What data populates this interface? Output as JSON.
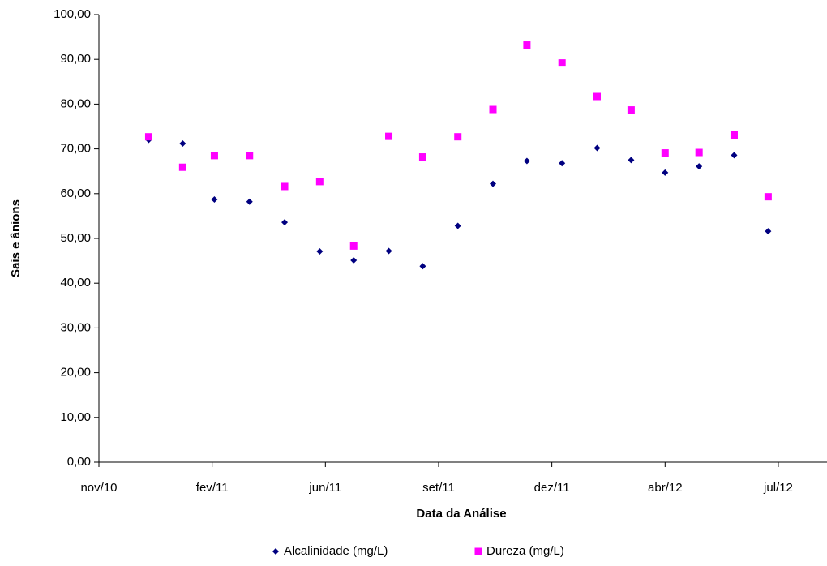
{
  "chart_data": {
    "type": "scatter",
    "x_label": "Data da Análise",
    "y_label": "Sais e ânions",
    "xlim": [
      40500,
      41143
    ],
    "xticks": [
      {
        "value": 40500,
        "label": "nov/10"
      },
      {
        "value": 40600,
        "label": "fev/11"
      },
      {
        "value": 40700,
        "label": "jun/11"
      },
      {
        "value": 40800,
        "label": "set/11"
      },
      {
        "value": 40900,
        "label": "dez/11"
      },
      {
        "value": 41000,
        "label": "abr/12"
      },
      {
        "value": 41100,
        "label": "jul/12"
      }
    ],
    "ylim": [
      0,
      100
    ],
    "yticks": [
      {
        "value": 0,
        "label": "0,00"
      },
      {
        "value": 10,
        "label": "10,00"
      },
      {
        "value": 20,
        "label": "20,00"
      },
      {
        "value": 30,
        "label": "30,00"
      },
      {
        "value": 40,
        "label": "40,00"
      },
      {
        "value": 50,
        "label": "50,00"
      },
      {
        "value": 60,
        "label": "60,00"
      },
      {
        "value": 70,
        "label": "70,00"
      },
      {
        "value": 80,
        "label": "80,00"
      },
      {
        "value": 90,
        "label": "90,00"
      },
      {
        "value": 100,
        "label": "100,00"
      }
    ],
    "series": [
      {
        "name": "Alcalinidade (mg/L)",
        "color": "#000080",
        "marker": "diamond",
        "x": [
          40544,
          40574,
          40602,
          40633,
          40664,
          40695,
          40725,
          40756,
          40786,
          40817,
          40848,
          40878,
          40909,
          40940,
          40970,
          41000,
          41030,
          41061,
          41091
        ],
        "values": [
          72.0,
          71.2,
          58.7,
          58.2,
          53.6,
          47.1,
          45.1,
          47.2,
          43.8,
          52.8,
          62.2,
          67.3,
          66.8,
          70.2,
          67.5,
          64.7,
          66.1,
          68.6,
          51.6
        ]
      },
      {
        "name": "Dureza (mg/L)",
        "color": "#ff00ff",
        "marker": "square",
        "x": [
          40544,
          40574,
          40602,
          40633,
          40664,
          40695,
          40725,
          40756,
          40786,
          40817,
          40848,
          40878,
          40909,
          40940,
          40970,
          41000,
          41030,
          41061,
          41091
        ],
        "values": [
          72.7,
          65.9,
          68.5,
          68.5,
          61.6,
          62.7,
          48.3,
          72.8,
          68.2,
          72.7,
          78.8,
          93.2,
          89.2,
          81.7,
          78.7,
          69.1,
          69.2,
          73.1,
          59.3
        ]
      }
    ]
  }
}
